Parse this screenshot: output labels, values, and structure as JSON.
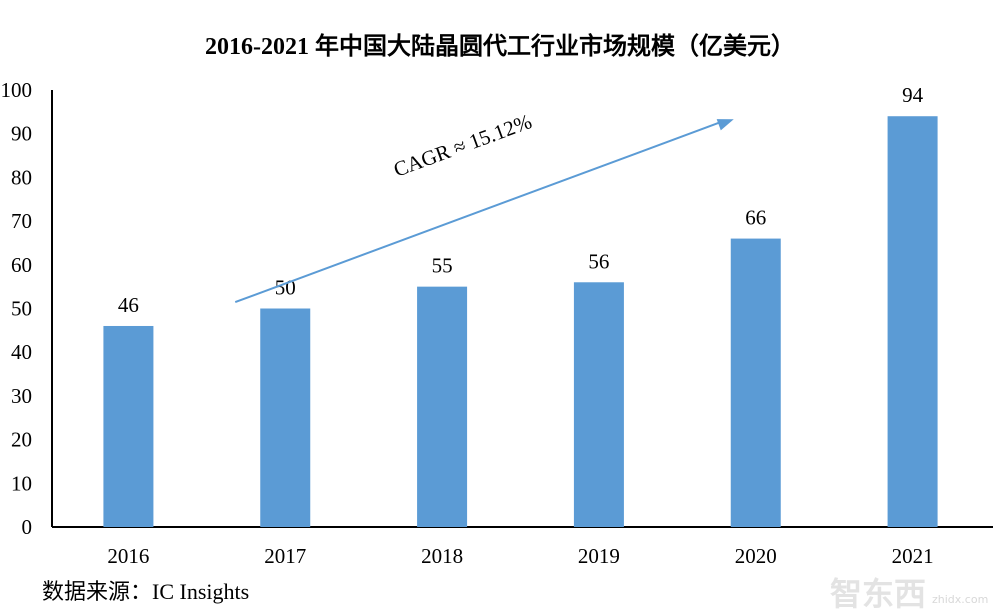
{
  "chart_data": {
    "type": "bar",
    "title": "2016-2021 年中国大陆晶圆代工行业市场规模（亿美元）",
    "categories": [
      "2016",
      "2017",
      "2018",
      "2019",
      "2020",
      "2021"
    ],
    "values": [
      46,
      50,
      55,
      56,
      66,
      94
    ],
    "data_labels": [
      "46",
      "50",
      "55",
      "56",
      "66",
      "94"
    ],
    "ylim": [
      0,
      100
    ],
    "yticks": [
      "0",
      "10",
      "20",
      "30",
      "40",
      "50",
      "60",
      "70",
      "80",
      "90",
      "100"
    ],
    "grid": false,
    "bar_color": "#5B9BD5",
    "annotation": {
      "text": "CAGR ≈ 15.12%",
      "arrow_color": "#5B9BD5",
      "arrow_from": [
        "2017",
        70
      ],
      "arrow_to": [
        "2020",
        94
      ]
    },
    "xlabel": "",
    "ylabel": ""
  },
  "source": "数据来源：IC Insights",
  "watermark": {
    "text": "智东西",
    "sub": "zhidx.com"
  }
}
